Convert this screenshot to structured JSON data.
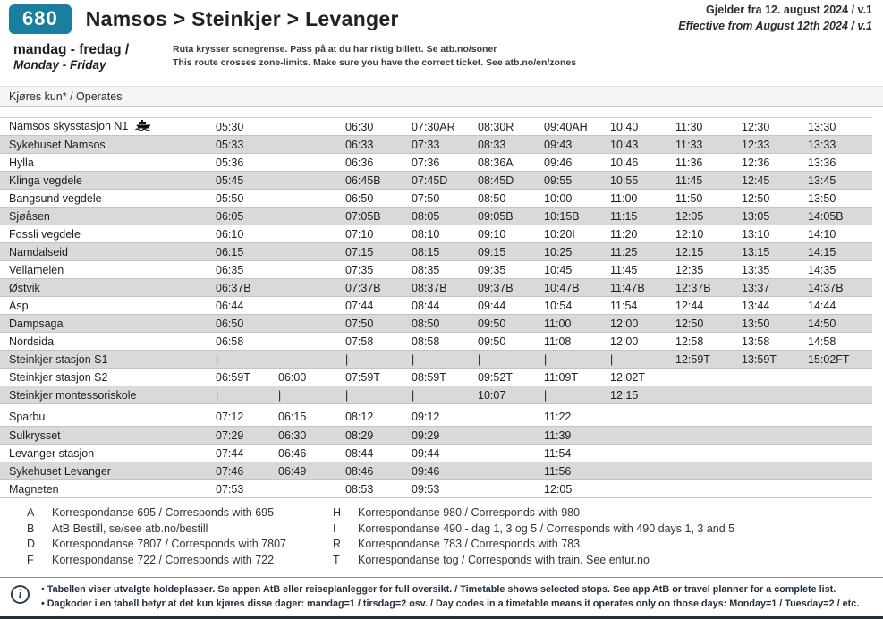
{
  "colors": {
    "accent_teal": "#1a7e9e",
    "row_alt_gray": "#d9d9d9",
    "note_dark": "#22303c"
  },
  "icons": {
    "ferry": "ferry-icon",
    "info": "i"
  },
  "header": {
    "route_number": "680",
    "title": "Namsos > Steinkjer > Levanger",
    "validity_no_main": "Gjelder fra 12. august 2024 / ",
    "validity_no_version": "v.1",
    "validity_en_main": "Effective from August 12th 2024 / ",
    "validity_en_version": "v.1",
    "days_no": "mandag - fredag /",
    "days_en": "Monday - Friday",
    "zone_note_no": "Ruta krysser sonegrense. Pass på at du har riktig billett. Se atb.no/soner",
    "zone_note_en": "This route crosses zone-limits. Make sure you have the correct ticket. See atb.no/en/zones"
  },
  "table": {
    "operates_label": "Kjøres kun* / Operates",
    "rows": [
      {
        "stop": "Namsos skysstasjon N1",
        "icon": "ferry-icon",
        "times": [
          "05:30",
          "",
          "06:30",
          "07:30AR",
          "08:30R",
          "09:40AH",
          "10:40",
          "11:30",
          "12:30",
          "13:30"
        ]
      },
      {
        "stop": "Sykehuset Namsos",
        "times": [
          "05:33",
          "",
          "06:33",
          "07:33",
          "08:33",
          "09:43",
          "10:43",
          "11:33",
          "12:33",
          "13:33"
        ]
      },
      {
        "stop": "Hylla",
        "times": [
          "05:36",
          "",
          "06:36",
          "07:36",
          "08:36A",
          "09:46",
          "10:46",
          "11:36",
          "12:36",
          "13:36"
        ]
      },
      {
        "stop": "Klinga vegdele",
        "times": [
          "05:45",
          "",
          "06:45B",
          "07:45D",
          "08:45D",
          "09:55",
          "10:55",
          "11:45",
          "12:45",
          "13:45"
        ]
      },
      {
        "stop": "Bangsund vegdele",
        "times": [
          "05:50",
          "",
          "06:50",
          "07:50",
          "08:50",
          "10:00",
          "11:00",
          "11:50",
          "12:50",
          "13:50"
        ]
      },
      {
        "stop": "Sjøåsen",
        "times": [
          "06:05",
          "",
          "07:05B",
          "08:05",
          "09:05B",
          "10:15B",
          "11:15",
          "12:05",
          "13:05",
          "14:05B"
        ]
      },
      {
        "stop": "Fossli vegdele",
        "times": [
          "06:10",
          "",
          "07:10",
          "08:10",
          "09:10",
          "10:20I",
          "11:20",
          "12:10",
          "13:10",
          "14:10"
        ]
      },
      {
        "stop": "Namdalseid",
        "times": [
          "06:15",
          "",
          "07:15",
          "08:15",
          "09:15",
          "10:25",
          "11:25",
          "12:15",
          "13:15",
          "14:15"
        ]
      },
      {
        "stop": "Vellamelen",
        "times": [
          "06:35",
          "",
          "07:35",
          "08:35",
          "09:35",
          "10:45",
          "11:45",
          "12:35",
          "13:35",
          "14:35"
        ]
      },
      {
        "stop": "Østvik",
        "times": [
          "06:37B",
          "",
          "07:37B",
          "08:37B",
          "09:37B",
          "10:47B",
          "11:47B",
          "12:37B",
          "13:37",
          "14:37B"
        ]
      },
      {
        "stop": "Asp",
        "times": [
          "06:44",
          "",
          "07:44",
          "08:44",
          "09:44",
          "10:54",
          "11:54",
          "12:44",
          "13:44",
          "14:44"
        ]
      },
      {
        "stop": "Dampsaga",
        "times": [
          "06:50",
          "",
          "07:50",
          "08:50",
          "09:50",
          "11:00",
          "12:00",
          "12:50",
          "13:50",
          "14:50"
        ]
      },
      {
        "stop": "Nordsida",
        "times": [
          "06:58",
          "",
          "07:58",
          "08:58",
          "09:50",
          "11:08",
          "12:00",
          "12:58",
          "13:58",
          "14:58"
        ]
      },
      {
        "stop": "Steinkjer stasjon S1",
        "times": [
          "|",
          "",
          "|",
          "|",
          "|",
          "|",
          "|",
          "12:59T",
          "13:59T",
          "15:02FT"
        ]
      },
      {
        "stop": "Steinkjer stasjon S2",
        "times": [
          "06:59T",
          "06:00",
          "07:59T",
          "08:59T",
          "09:52T",
          "11:09T",
          "12:02T",
          "",
          "",
          ""
        ]
      },
      {
        "stop": "Steinkjer montessoriskole",
        "times": [
          "|",
          "|",
          "|",
          "|",
          "10:07",
          "|",
          "12:15",
          "",
          "",
          ""
        ]
      },
      {
        "stop": "Sparbu",
        "gap_before": true,
        "times": [
          "07:12",
          "06:15",
          "08:12",
          "09:12",
          "",
          "11:22",
          "",
          "",
          "",
          ""
        ]
      },
      {
        "stop": "Sulkrysset",
        "times": [
          "07:29",
          "06:30",
          "08:29",
          "09:29",
          "",
          "11:39",
          "",
          "",
          "",
          ""
        ]
      },
      {
        "stop": "Levanger stasjon",
        "times": [
          "07:44",
          "06:46",
          "08:44",
          "09:44",
          "",
          "11:54",
          "",
          "",
          "",
          ""
        ]
      },
      {
        "stop": "Sykehuset Levanger",
        "times": [
          "07:46",
          "06:49",
          "08:46",
          "09:46",
          "",
          "11:56",
          "",
          "",
          "",
          ""
        ]
      },
      {
        "stop": "Magneten",
        "times": [
          "07:53",
          "",
          "08:53",
          "09:53",
          "",
          "12:05",
          "",
          "",
          "",
          ""
        ]
      }
    ]
  },
  "footnotes": {
    "left": [
      {
        "code": "A",
        "text": "Korrespondanse 695 / Corresponds with 695"
      },
      {
        "code": "B",
        "text": "AtB Bestill, se/see atb.no/bestill"
      },
      {
        "code": "D",
        "text": "Korrespondanse 7807 / Corresponds with 7807"
      },
      {
        "code": "F",
        "text": "Korrespondanse 722 / Corresponds with 722"
      }
    ],
    "right": [
      {
        "code": "H",
        "text": "Korrespondanse 980 / Corresponds with 980"
      },
      {
        "code": "I",
        "text": "Korrespondanse 490 - dag 1, 3 og 5 / Corresponds with 490 days 1, 3 and 5"
      },
      {
        "code": "R",
        "text": "Korrespondanse 783 / Corresponds with 783"
      },
      {
        "code": "T",
        "text": "Korrespondanse tog / Corresponds with train. See entur.no"
      }
    ]
  },
  "bottom_note": {
    "line1": "• Tabellen viser utvalgte holdeplasser. Se appen AtB eller reiseplanlegger for full oversikt.  / Timetable shows selected stops. See app AtB or travel planner for a complete list.",
    "line2": "• Dagkoder i en tabell betyr at det kun kjøres disse dager: mandag=1 / tirsdag=2 osv. / Day codes in a timetable means it operates only on those days: Monday=1 / Tuesday=2 / etc."
  }
}
